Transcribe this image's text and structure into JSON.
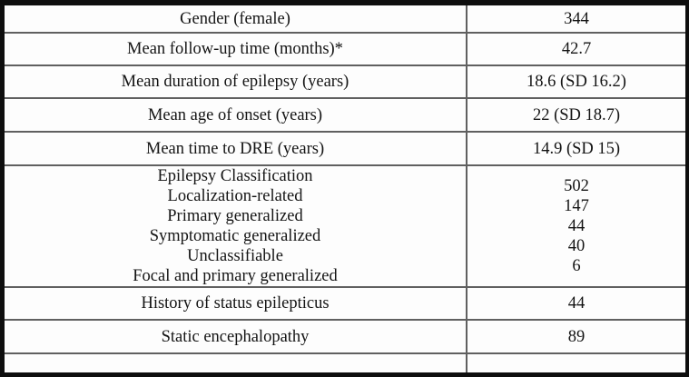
{
  "colors": {
    "outer_border": "#0e0e0e",
    "grid_line": "#606060",
    "text": "#141414",
    "background": "#fdfdfd"
  },
  "table": {
    "rows": [
      {
        "label": "Gender (female)",
        "value": "344"
      },
      {
        "label": "Mean follow-up time (months)*",
        "value": "42.7"
      },
      {
        "label": "Mean duration of epilepsy (years)",
        "value": "18.6 (SD 16.2)"
      },
      {
        "label": "Mean age of onset (years)",
        "value": "22 (SD 18.7)"
      },
      {
        "label": "Mean time to DRE (years)",
        "value": "14.9 (SD 15)"
      },
      {
        "label_lines": [
          "Epilepsy Classification",
          "Localization-related",
          "Primary generalized",
          "Symptomatic generalized",
          "Unclassifiable",
          "Focal and primary generalized"
        ],
        "value_lines": [
          "502",
          "147",
          "44",
          "40",
          "6"
        ]
      },
      {
        "label": "History of status epilepticus",
        "value": "44"
      },
      {
        "label": "Static encephalopathy",
        "value": "89"
      },
      {
        "label": "",
        "value": ""
      }
    ]
  }
}
